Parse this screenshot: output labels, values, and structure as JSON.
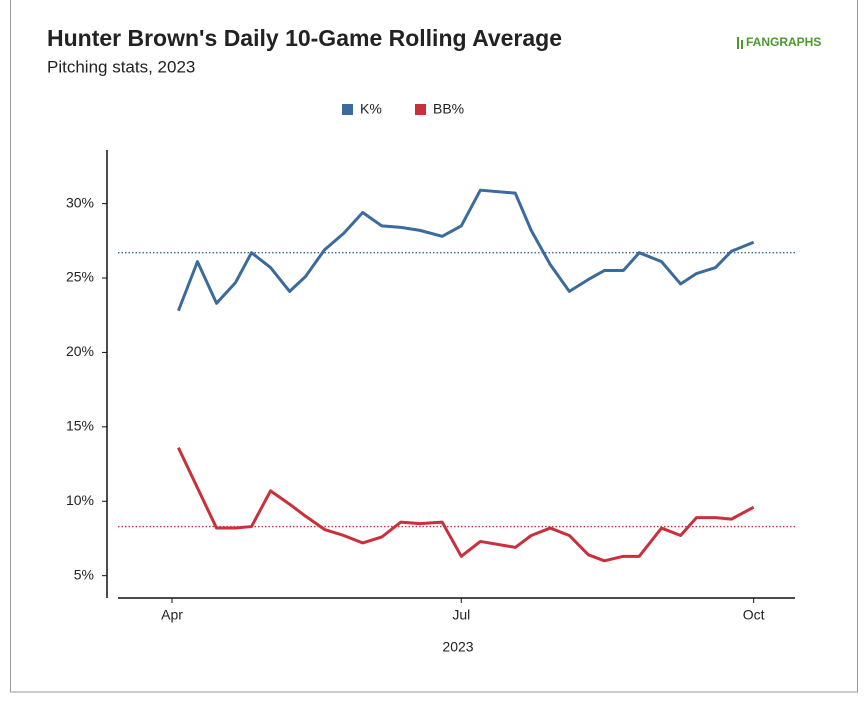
{
  "chart_data": {
    "type": "line",
    "title": "Hunter Brown's Daily 10-Game Rolling Average",
    "subtitle": "Pitching stats, 2023",
    "logo": "FANGRAPHS",
    "xlabel": "2023",
    "x": [
      "2023-04-03",
      "2023-04-09",
      "2023-04-15",
      "2023-04-21",
      "2023-04-26",
      "2023-05-02",
      "2023-05-08",
      "2023-05-13",
      "2023-05-19",
      "2023-05-25",
      "2023-05-31",
      "2023-06-06",
      "2023-06-12",
      "2023-06-18",
      "2023-06-25",
      "2023-07-01",
      "2023-07-07",
      "2023-07-18",
      "2023-07-23",
      "2023-07-29",
      "2023-08-04",
      "2023-08-10",
      "2023-08-15",
      "2023-08-21",
      "2023-08-26",
      "2023-09-02",
      "2023-09-08",
      "2023-09-13",
      "2023-09-19",
      "2023-09-24",
      "2023-10-01"
    ],
    "series": [
      {
        "name": "K%",
        "color": "#3b6a9c",
        "average": 26.7,
        "values": [
          22.8,
          26.1,
          23.3,
          24.7,
          26.7,
          25.7,
          24.1,
          25.1,
          26.9,
          28.0,
          29.4,
          28.5,
          28.4,
          28.2,
          27.8,
          28.5,
          30.9,
          30.7,
          28.2,
          25.9,
          24.1,
          24.9,
          25.5,
          25.5,
          26.7,
          26.1,
          24.6,
          25.3,
          25.7,
          26.8,
          27.4
        ]
      },
      {
        "name": "BB%",
        "color": "#c8303c",
        "average": 8.3,
        "values": [
          13.6,
          10.9,
          8.2,
          8.2,
          8.3,
          10.7,
          9.8,
          9.0,
          8.1,
          7.7,
          7.2,
          7.6,
          8.6,
          8.5,
          8.6,
          6.3,
          7.3,
          6.9,
          7.7,
          8.2,
          7.7,
          6.4,
          6.0,
          6.3,
          6.3,
          8.2,
          7.7,
          8.9,
          8.9,
          8.8,
          9.6
        ]
      }
    ],
    "xlim": [
      "2023-03-15",
      "2023-10-14"
    ],
    "xticks": [
      {
        "value": "2023-04-01",
        "label": "Apr"
      },
      {
        "value": "2023-07-01",
        "label": "Jul"
      },
      {
        "value": "2023-10-01",
        "label": "Oct"
      }
    ],
    "ylim": [
      3.5,
      33.6
    ],
    "yticks": [
      {
        "value": 5,
        "label": "5%"
      },
      {
        "value": 10,
        "label": "10%"
      },
      {
        "value": 15,
        "label": "15%"
      },
      {
        "value": 20,
        "label": "20%"
      },
      {
        "value": 25,
        "label": "25%"
      },
      {
        "value": 30,
        "label": "30%"
      }
    ],
    "legend": "top"
  }
}
